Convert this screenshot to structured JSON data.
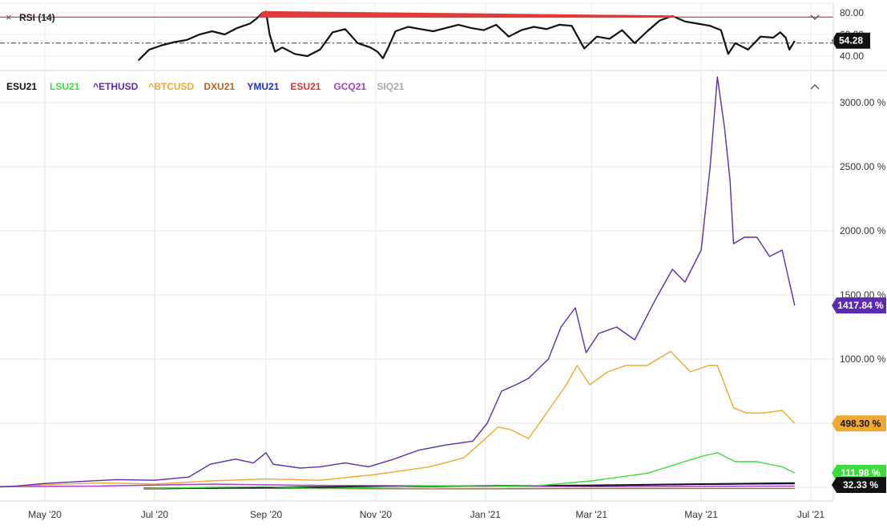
{
  "rsi_panel": {
    "close_icon": "×",
    "label": "RSI (14)",
    "collapse_icon": "chevron-down-icon",
    "y_ticks": [
      "80.00",
      "60.00",
      "40.00"
    ],
    "tick_values": [
      80,
      60,
      40
    ],
    "current_badge": "54.28",
    "overbought_level": 76,
    "reference_level": 52
  },
  "main_panel": {
    "collapse_icon": "chevron-up-icon",
    "legend": [
      {
        "symbol": "ESU21",
        "color": "#111111"
      },
      {
        "symbol": "LSU21",
        "color": "#3ddc3d"
      },
      {
        "symbol": "^ETHUSD",
        "color": "#5b2bb3"
      },
      {
        "symbol": "^BTCUSD",
        "color": "#f0a830"
      },
      {
        "symbol": "DXU21",
        "color": "#b5651d"
      },
      {
        "symbol": "YMU21",
        "color": "#1a2fd6"
      },
      {
        "symbol": "ESU21",
        "color": "#e03030"
      },
      {
        "symbol": "GCQ21",
        "color": "#a640c8"
      },
      {
        "symbol": "SIQ21",
        "color": "#a8a8a8"
      }
    ],
    "y_tick_labels": [
      "3000.00 %",
      "2500.00 %",
      "2000.00 %",
      "1500.00 %",
      "1000.00 %",
      "500.00 %"
    ],
    "y_tick_values": [
      3000,
      2500,
      2000,
      1500,
      1000,
      500
    ],
    "x_tick_labels": [
      "May '20",
      "Jul '20",
      "Sep '20",
      "Nov '20",
      "Jan '21",
      "Mar '21",
      "May '21",
      "Jul '21"
    ],
    "x_tick_values": [
      "2020-05-01",
      "2020-07-01",
      "2020-09-01",
      "2020-11-01",
      "2021-01-01",
      "2021-03-01",
      "2021-05-01",
      "2021-07-01"
    ],
    "badges": [
      {
        "text": "1417.84 %",
        "series": "^ETHUSD",
        "value": 1417.84,
        "bg": "#5b2bb3",
        "fg": "#ffffff"
      },
      {
        "text": "498.30 %",
        "series": "^BTCUSD",
        "value": 498.3,
        "bg": "#f0a830",
        "fg": "#111111"
      },
      {
        "text": "111.98 %",
        "series": "LSU21",
        "value": 111.98,
        "bg": "#3ddc3d",
        "fg": "#ffffff"
      },
      {
        "text": "32.33 %",
        "series": "ESU21",
        "value": 32.33,
        "bg": "#111111",
        "fg": "#ffffff"
      }
    ]
  },
  "chart_data": [
    {
      "type": "line",
      "title": "RSI (14)",
      "ylim": [
        34,
        84
      ],
      "grid": true,
      "series": [
        {
          "name": "RSI (14)",
          "color": "#111111",
          "points": [
            [
              "2020-06-22",
              36
            ],
            [
              "2020-06-28",
              46
            ],
            [
              "2020-07-05",
              50
            ],
            [
              "2020-07-12",
              53
            ],
            [
              "2020-07-19",
              55
            ],
            [
              "2020-07-26",
              60
            ],
            [
              "2020-08-02",
              63
            ],
            [
              "2020-08-09",
              60
            ],
            [
              "2020-08-16",
              66
            ],
            [
              "2020-08-23",
              70
            ],
            [
              "2020-08-27",
              75
            ],
            [
              "2020-08-30",
              80
            ],
            [
              "2020-09-01",
              81
            ],
            [
              "2020-09-03",
              60
            ],
            [
              "2020-09-06",
              44
            ],
            [
              "2020-09-10",
              48
            ],
            [
              "2020-09-17",
              42
            ],
            [
              "2020-09-24",
              40
            ],
            [
              "2020-10-01",
              46
            ],
            [
              "2020-10-08",
              62
            ],
            [
              "2020-10-15",
              65
            ],
            [
              "2020-10-22",
              52
            ],
            [
              "2020-10-29",
              48
            ],
            [
              "2020-11-02",
              44
            ],
            [
              "2020-11-05",
              38
            ],
            [
              "2020-11-08",
              48
            ],
            [
              "2020-11-12",
              63
            ],
            [
              "2020-11-19",
              67
            ],
            [
              "2020-11-26",
              65
            ],
            [
              "2020-12-03",
              63
            ],
            [
              "2020-12-10",
              66
            ],
            [
              "2020-12-17",
              69
            ],
            [
              "2020-12-24",
              66
            ],
            [
              "2020-12-31",
              64
            ],
            [
              "2021-01-07",
              69
            ],
            [
              "2021-01-14",
              58
            ],
            [
              "2021-01-21",
              64
            ],
            [
              "2021-01-28",
              67
            ],
            [
              "2021-02-04",
              65
            ],
            [
              "2021-02-11",
              69
            ],
            [
              "2021-02-18",
              68
            ],
            [
              "2021-02-25",
              47
            ],
            [
              "2021-03-04",
              58
            ],
            [
              "2021-03-11",
              56
            ],
            [
              "2021-03-18",
              64
            ],
            [
              "2021-03-25",
              52
            ],
            [
              "2021-04-01",
              63
            ],
            [
              "2021-04-08",
              73
            ],
            [
              "2021-04-15",
              77
            ],
            [
              "2021-04-22",
              72
            ],
            [
              "2021-04-29",
              70
            ],
            [
              "2021-05-06",
              68
            ],
            [
              "2021-05-12",
              64
            ],
            [
              "2021-05-16",
              42
            ],
            [
              "2021-05-20",
              52
            ],
            [
              "2021-05-27",
              46
            ],
            [
              "2021-06-03",
              58
            ],
            [
              "2021-06-10",
              57
            ],
            [
              "2021-06-14",
              62
            ],
            [
              "2021-06-17",
              57
            ],
            [
              "2021-06-19",
              46
            ],
            [
              "2021-06-22",
              54
            ]
          ]
        }
      ],
      "y_ticks": [
        40,
        60,
        80
      ]
    },
    {
      "type": "line",
      "ylim": [
        -100,
        3250
      ],
      "ylabel": "",
      "grid": true,
      "legend_position": "top-left",
      "x_ticks": [
        "May '20",
        "Jul '20",
        "Sep '20",
        "Nov '20",
        "Jan '21",
        "Mar '21",
        "May '21",
        "Jul '21"
      ],
      "y_ticks": [
        500,
        1000,
        1500,
        2000,
        2500,
        3000
      ],
      "series": [
        {
          "name": "^ETHUSD",
          "color": "#5b2bb3",
          "last": 1417.84,
          "points": [
            [
              "2020-04-01",
              0
            ],
            [
              "2020-04-15",
              10
            ],
            [
              "2020-05-01",
              30
            ],
            [
              "2020-05-20",
              45
            ],
            [
              "2020-06-10",
              60
            ],
            [
              "2020-07-01",
              55
            ],
            [
              "2020-07-20",
              80
            ],
            [
              "2020-08-01",
              180
            ],
            [
              "2020-08-15",
              220
            ],
            [
              "2020-08-25",
              190
            ],
            [
              "2020-09-01",
              270
            ],
            [
              "2020-09-05",
              180
            ],
            [
              "2020-09-20",
              150
            ],
            [
              "2020-10-01",
              160
            ],
            [
              "2020-10-15",
              190
            ],
            [
              "2020-10-28",
              160
            ],
            [
              "2020-11-10",
              215
            ],
            [
              "2020-11-25",
              290
            ],
            [
              "2020-12-10",
              330
            ],
            [
              "2020-12-25",
              360
            ],
            [
              "2021-01-02",
              500
            ],
            [
              "2021-01-10",
              750
            ],
            [
              "2021-01-18",
              800
            ],
            [
              "2021-01-25",
              850
            ],
            [
              "2021-02-05",
              1000
            ],
            [
              "2021-02-12",
              1250
            ],
            [
              "2021-02-20",
              1400
            ],
            [
              "2021-02-26",
              1050
            ],
            [
              "2021-03-05",
              1200
            ],
            [
              "2021-03-15",
              1250
            ],
            [
              "2021-03-25",
              1150
            ],
            [
              "2021-04-05",
              1450
            ],
            [
              "2021-04-15",
              1700
            ],
            [
              "2021-04-22",
              1600
            ],
            [
              "2021-05-01",
              1850
            ],
            [
              "2021-05-06",
              2500
            ],
            [
              "2021-05-10",
              3200
            ],
            [
              "2021-05-14",
              2800
            ],
            [
              "2021-05-17",
              2400
            ],
            [
              "2021-05-19",
              1900
            ],
            [
              "2021-05-25",
              1950
            ],
            [
              "2021-06-01",
              1950
            ],
            [
              "2021-06-08",
              1800
            ],
            [
              "2021-06-15",
              1850
            ],
            [
              "2021-06-22",
              1417.84
            ]
          ]
        },
        {
          "name": "^BTCUSD",
          "color": "#f0a830",
          "last": 498.3,
          "points": [
            [
              "2020-04-01",
              0
            ],
            [
              "2020-05-01",
              20
            ],
            [
              "2020-06-01",
              35
            ],
            [
              "2020-07-01",
              25
            ],
            [
              "2020-08-01",
              50
            ],
            [
              "2020-09-01",
              65
            ],
            [
              "2020-10-01",
              55
            ],
            [
              "2020-11-01",
              100
            ],
            [
              "2020-12-01",
              160
            ],
            [
              "2020-12-20",
              230
            ],
            [
              "2021-01-01",
              380
            ],
            [
              "2021-01-08",
              470
            ],
            [
              "2021-01-15",
              450
            ],
            [
              "2021-01-25",
              380
            ],
            [
              "2021-02-05",
              600
            ],
            [
              "2021-02-15",
              800
            ],
            [
              "2021-02-21",
              950
            ],
            [
              "2021-02-28",
              800
            ],
            [
              "2021-03-10",
              900
            ],
            [
              "2021-03-20",
              950
            ],
            [
              "2021-04-01",
              950
            ],
            [
              "2021-04-14",
              1060
            ],
            [
              "2021-04-25",
              900
            ],
            [
              "2021-05-05",
              950
            ],
            [
              "2021-05-10",
              950
            ],
            [
              "2021-05-19",
              620
            ],
            [
              "2021-05-26",
              580
            ],
            [
              "2021-06-05",
              580
            ],
            [
              "2021-06-15",
              600
            ],
            [
              "2021-06-22",
              498.3
            ]
          ]
        },
        {
          "name": "LSU21",
          "color": "#3ddc3d",
          "last": 111.98,
          "points": [
            [
              "2020-06-25",
              -10
            ],
            [
              "2020-08-01",
              0
            ],
            [
              "2020-09-01",
              5
            ],
            [
              "2020-10-01",
              -10
            ],
            [
              "2020-11-01",
              0
            ],
            [
              "2020-12-01",
              10
            ],
            [
              "2021-01-01",
              5
            ],
            [
              "2021-02-01",
              15
            ],
            [
              "2021-03-01",
              50
            ],
            [
              "2021-04-01",
              110
            ],
            [
              "2021-05-01",
              240
            ],
            [
              "2021-05-10",
              270
            ],
            [
              "2021-05-20",
              200
            ],
            [
              "2021-06-01",
              200
            ],
            [
              "2021-06-15",
              160
            ],
            [
              "2021-06-22",
              111.98
            ]
          ]
        },
        {
          "name": "GCQ21",
          "color": "#a640c8",
          "points": [
            [
              "2020-04-01",
              5
            ],
            [
              "2020-06-01",
              10
            ],
            [
              "2020-08-01",
              25
            ],
            [
              "2020-10-01",
              15
            ],
            [
              "2020-12-01",
              12
            ],
            [
              "2021-03-01",
              5
            ],
            [
              "2021-06-22",
              10
            ]
          ]
        },
        {
          "name": "ESU21",
          "color": "#111111",
          "last": 32.33,
          "points": [
            [
              "2020-06-25",
              -10
            ],
            [
              "2020-09-01",
              0
            ],
            [
              "2020-11-01",
              5
            ],
            [
              "2021-01-01",
              10
            ],
            [
              "2021-03-01",
              15
            ],
            [
              "2021-05-01",
              25
            ],
            [
              "2021-06-22",
              32.33
            ]
          ]
        },
        {
          "name": "YMU21",
          "color": "#1a2fd6",
          "points": [
            [
              "2020-06-25",
              -12
            ],
            [
              "2020-09-01",
              -2
            ],
            [
              "2020-11-01",
              3
            ],
            [
              "2021-01-01",
              8
            ],
            [
              "2021-03-01",
              14
            ],
            [
              "2021-05-01",
              24
            ],
            [
              "2021-06-22",
              28
            ]
          ]
        },
        {
          "name": "DXU21",
          "color": "#b5651d",
          "points": [
            [
              "2020-06-25",
              -5
            ],
            [
              "2020-09-01",
              -8
            ],
            [
              "2020-12-01",
              -12
            ],
            [
              "2021-03-01",
              -10
            ],
            [
              "2021-06-22",
              -9
            ]
          ]
        }
      ]
    }
  ]
}
